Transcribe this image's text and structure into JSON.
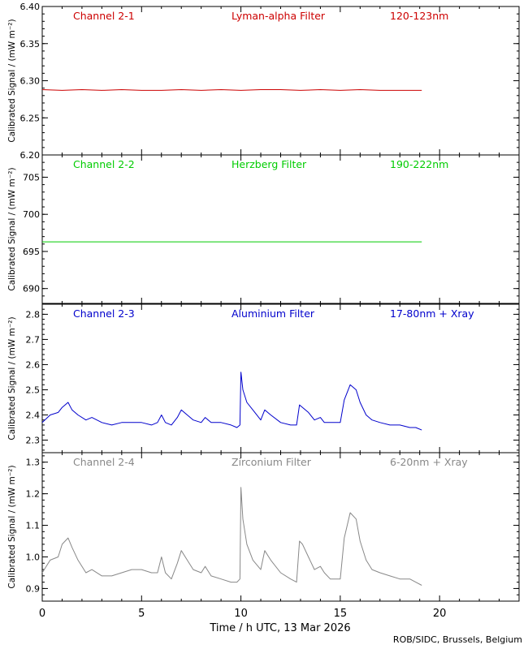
{
  "page": {
    "xlabel": "Time / h UTC, 13 Mar 2026",
    "credit": "ROB/SIDC, Brussels, Belgium"
  },
  "chart_data": [
    {
      "type": "line",
      "channel": "Channel 2-1",
      "filter": "Lyman-alpha Filter",
      "band": "120-123nm",
      "color": "#cc0000",
      "ylabel": "Calibrated Signal / (mW m⁻²)",
      "xlim": [
        0,
        24
      ],
      "ylim": [
        6.2,
        6.4
      ],
      "yticks": [
        "6.20",
        "6.25",
        "6.30",
        "6.35",
        "6.40"
      ],
      "x": [
        0,
        1,
        2,
        3,
        4,
        5,
        6,
        7,
        8,
        9,
        10,
        11,
        12,
        13,
        14,
        15,
        16,
        17,
        18,
        19.1
      ],
      "values": [
        6.288,
        6.287,
        6.288,
        6.287,
        6.288,
        6.287,
        6.287,
        6.288,
        6.287,
        6.288,
        6.287,
        6.288,
        6.288,
        6.287,
        6.288,
        6.287,
        6.288,
        6.287,
        6.287,
        6.287
      ]
    },
    {
      "type": "line",
      "channel": "Channel 2-2",
      "filter": "Herzberg Filter",
      "band": "190-222nm",
      "color": "#00cc00",
      "ylabel": "Calibrated Signal / (mW m⁻²)",
      "xlim": [
        0,
        24
      ],
      "ylim": [
        688,
        708
      ],
      "yticks": [
        "690",
        "695",
        "700",
        "705"
      ],
      "x": [
        0,
        5,
        10,
        15,
        19.1
      ],
      "values": [
        696.3,
        696.3,
        696.3,
        696.3,
        696.3
      ]
    },
    {
      "type": "line",
      "channel": "Channel 2-3",
      "filter": "Aluminium Filter",
      "band": "17-80nm + Xray",
      "color": "#0000cc",
      "ylabel": "Calibrated Signal / (mW m⁻²)",
      "xlim": [
        0,
        24
      ],
      "ylim": [
        2.25,
        2.84
      ],
      "yticks": [
        "2.3",
        "2.4",
        "2.5",
        "2.6",
        "2.7",
        "2.8"
      ],
      "x": [
        0,
        0.4,
        0.8,
        1.0,
        1.3,
        1.5,
        1.8,
        2.2,
        2.5,
        3.0,
        3.5,
        4.0,
        4.5,
        5.0,
        5.5,
        5.8,
        6.0,
        6.2,
        6.5,
        6.8,
        7.0,
        7.3,
        7.6,
        8.0,
        8.2,
        8.5,
        9.0,
        9.5,
        9.8,
        9.95,
        10.0,
        10.1,
        10.3,
        10.6,
        11.0,
        11.2,
        11.5,
        12.0,
        12.5,
        12.8,
        12.95,
        13.1,
        13.4,
        13.7,
        14.0,
        14.2,
        14.5,
        15.0,
        15.2,
        15.5,
        15.8,
        16.0,
        16.3,
        16.6,
        17.0,
        17.5,
        18.0,
        18.5,
        18.8,
        19.1
      ],
      "values": [
        2.37,
        2.4,
        2.41,
        2.43,
        2.45,
        2.42,
        2.4,
        2.38,
        2.39,
        2.37,
        2.36,
        2.37,
        2.37,
        2.37,
        2.36,
        2.37,
        2.4,
        2.37,
        2.36,
        2.39,
        2.42,
        2.4,
        2.38,
        2.37,
        2.39,
        2.37,
        2.37,
        2.36,
        2.35,
        2.36,
        2.57,
        2.5,
        2.45,
        2.42,
        2.38,
        2.42,
        2.4,
        2.37,
        2.36,
        2.36,
        2.44,
        2.43,
        2.41,
        2.38,
        2.39,
        2.37,
        2.37,
        2.37,
        2.46,
        2.52,
        2.5,
        2.45,
        2.4,
        2.38,
        2.37,
        2.36,
        2.36,
        2.35,
        2.35,
        2.34
      ]
    },
    {
      "type": "line",
      "channel": "Channel 2-4",
      "filter": "Zirconium Filter",
      "band": "6-20nm + Xray",
      "color": "#888888",
      "ylabel": "Calibrated Signal / (mW m⁻²)",
      "xlim": [
        0,
        24
      ],
      "ylim": [
        0.86,
        1.33
      ],
      "yticks": [
        "0.9",
        "1.0",
        "1.1",
        "1.2",
        "1.3"
      ],
      "x": [
        0,
        0.4,
        0.8,
        1.0,
        1.3,
        1.5,
        1.8,
        2.2,
        2.5,
        3.0,
        3.5,
        4.0,
        4.5,
        5.0,
        5.5,
        5.8,
        6.0,
        6.2,
        6.5,
        6.8,
        7.0,
        7.3,
        7.6,
        8.0,
        8.2,
        8.5,
        9.0,
        9.5,
        9.8,
        9.95,
        10.0,
        10.1,
        10.3,
        10.6,
        11.0,
        11.2,
        11.5,
        12.0,
        12.5,
        12.8,
        12.95,
        13.1,
        13.4,
        13.7,
        14.0,
        14.2,
        14.5,
        15.0,
        15.2,
        15.5,
        15.8,
        16.0,
        16.3,
        16.6,
        17.0,
        17.5,
        18.0,
        18.5,
        18.8,
        19.1
      ],
      "values": [
        0.95,
        0.99,
        1.0,
        1.04,
        1.06,
        1.03,
        0.99,
        0.95,
        0.96,
        0.94,
        0.94,
        0.95,
        0.96,
        0.96,
        0.95,
        0.95,
        1.0,
        0.95,
        0.93,
        0.98,
        1.02,
        0.99,
        0.96,
        0.95,
        0.97,
        0.94,
        0.93,
        0.92,
        0.92,
        0.93,
        1.22,
        1.12,
        1.04,
        0.99,
        0.96,
        1.02,
        0.99,
        0.95,
        0.93,
        0.92,
        1.05,
        1.04,
        1.0,
        0.96,
        0.97,
        0.95,
        0.93,
        0.93,
        1.06,
        1.14,
        1.12,
        1.05,
        0.99,
        0.96,
        0.95,
        0.94,
        0.93,
        0.93,
        0.92,
        0.91
      ]
    }
  ],
  "xaxis": {
    "ticks": [
      "0",
      "5",
      "10",
      "15",
      "20"
    ],
    "tick_values": [
      0,
      5,
      10,
      15,
      20
    ]
  }
}
